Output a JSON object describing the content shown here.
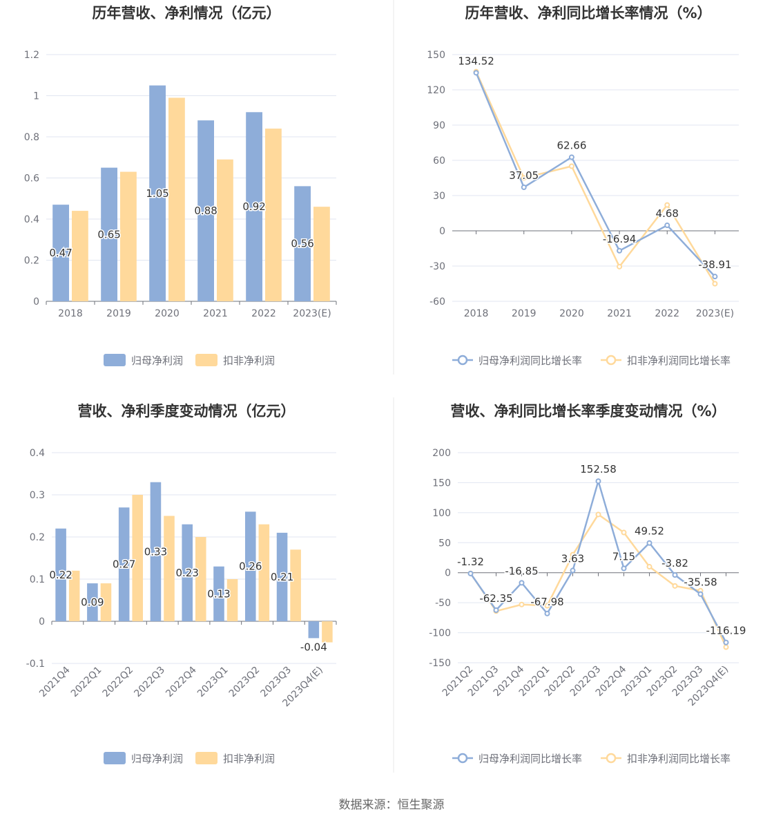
{
  "source_text": "数据来源：恒生聚源",
  "colors": {
    "blue": "#8eadd9",
    "orange": "#ffd99b",
    "grid": "#e0e6f1",
    "axis": "#6e7079",
    "text": "#333333",
    "divider": "#e8e8e8"
  },
  "chart_data": [
    {
      "type": "bar",
      "title": "历年营收、净利情况（亿元）",
      "categories": [
        "2018",
        "2019",
        "2020",
        "2021",
        "2022",
        "2023(E)"
      ],
      "ylim": [
        0,
        1.2
      ],
      "yticks": [
        0,
        0.2,
        0.4,
        0.6,
        0.8,
        1,
        1.2
      ],
      "ytick_labels": [
        "0",
        "0.2",
        "0.4",
        "0.6",
        "0.8",
        "1",
        "1.2"
      ],
      "series": [
        {
          "name": "归母净利润",
          "values": [
            0.47,
            0.65,
            1.05,
            0.88,
            0.92,
            0.56
          ],
          "labels": [
            "0.47",
            "0.65",
            "1.05",
            "0.88",
            "0.92",
            "0.56"
          ]
        },
        {
          "name": "扣非净利润",
          "values": [
            0.44,
            0.63,
            0.99,
            0.69,
            0.84,
            0.46
          ]
        }
      ],
      "legend": "bottom",
      "grid": true
    },
    {
      "type": "line",
      "title": "历年营收、净利同比增长率情况（%）",
      "categories": [
        "2018",
        "2019",
        "2020",
        "2021",
        "2022",
        "2023(E)"
      ],
      "ylim": [
        -60,
        150
      ],
      "yticks": [
        -60,
        -30,
        0,
        30,
        60,
        90,
        120,
        150
      ],
      "ytick_labels": [
        "-60",
        "-30",
        "0",
        "30",
        "60",
        "90",
        "120",
        "150"
      ],
      "series": [
        {
          "name": "归母净利润同比增长率",
          "values": [
            134.52,
            37.05,
            62.66,
            -16.94,
            4.68,
            -38.91
          ],
          "labels": [
            "134.52",
            "37.05",
            "62.66",
            "-16.94",
            "4.68",
            "-38.91"
          ]
        },
        {
          "name": "扣非净利润同比增长率",
          "values": [
            135.5,
            45,
            55,
            -30.5,
            22,
            -45
          ]
        }
      ],
      "legend": "bottom",
      "grid": true
    },
    {
      "type": "bar",
      "title": "营收、净利季度变动情况（亿元）",
      "categories": [
        "2021Q4",
        "2022Q1",
        "2022Q2",
        "2022Q3",
        "2022Q4",
        "2023Q1",
        "2023Q2",
        "2023Q3",
        "2023Q4(E)"
      ],
      "ylim": [
        -0.1,
        0.4
      ],
      "yticks": [
        -0.1,
        0,
        0.1,
        0.2,
        0.3,
        0.4
      ],
      "ytick_labels": [
        "-0.1",
        "0",
        "0.1",
        "0.2",
        "0.3",
        "0.4"
      ],
      "series": [
        {
          "name": "归母净利润",
          "values": [
            0.22,
            0.09,
            0.27,
            0.33,
            0.23,
            0.13,
            0.26,
            0.21,
            -0.04
          ],
          "labels": [
            "0.22",
            "0.09",
            "0.27",
            "0.33",
            "0.23",
            "0.13",
            "0.26",
            "0.21",
            "-0.04"
          ]
        },
        {
          "name": "扣非净利润",
          "values": [
            0.12,
            0.09,
            0.3,
            0.25,
            0.2,
            0.1,
            0.23,
            0.17,
            -0.05
          ]
        }
      ],
      "legend": "bottom",
      "grid": true
    },
    {
      "type": "line",
      "title": "营收、净利同比增长率季度变动情况（%）",
      "categories": [
        "2021Q2",
        "2021Q3",
        "2021Q4",
        "2022Q1",
        "2022Q2",
        "2022Q3",
        "2022Q4",
        "2023Q1",
        "2023Q2",
        "2023Q3",
        "2023Q4(E)"
      ],
      "ylim": [
        -150,
        200
      ],
      "yticks": [
        -150,
        -100,
        -50,
        0,
        50,
        100,
        150,
        200
      ],
      "ytick_labels": [
        "-150",
        "-100",
        "-50",
        "0",
        "50",
        "100",
        "150",
        "200"
      ],
      "series": [
        {
          "name": "归母净利润同比增长率",
          "values": [
            -1.32,
            -62.35,
            -16.85,
            -67.98,
            3.63,
            152.58,
            7.15,
            49.52,
            -3.82,
            -35.58,
            -116.19
          ],
          "labels": [
            "-1.32",
            "-62.35",
            "-16.85",
            "-67.98",
            "3.63",
            "152.58",
            "7.15",
            "49.52",
            "-3.82",
            "-35.58",
            "-116.19"
          ]
        },
        {
          "name": "扣非净利润同比增长率",
          "values": [
            -1,
            -64,
            -53,
            -55,
            30,
            97,
            67,
            10,
            -22,
            -30,
            -124
          ]
        }
      ],
      "legend": "bottom",
      "grid": true
    }
  ]
}
